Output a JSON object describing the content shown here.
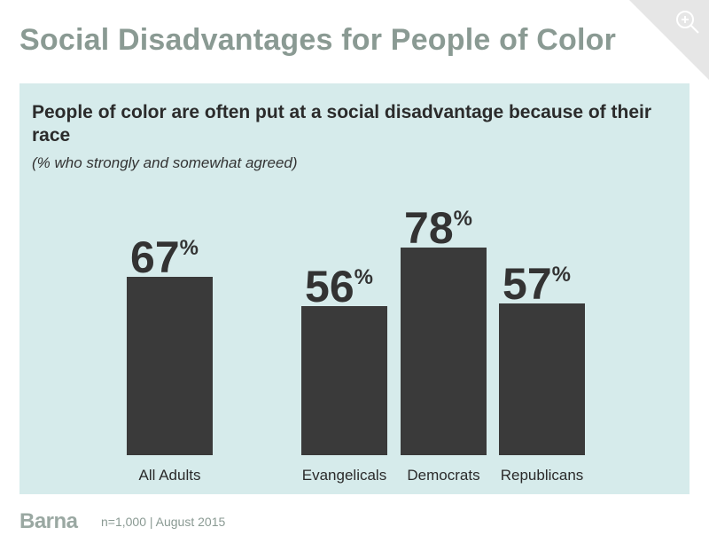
{
  "header": {
    "title": "Social Disadvantages for People of Color"
  },
  "chart_data": {
    "type": "bar",
    "title": "People of color are often put at a social disadvantage because of their race",
    "subtitle": "(% who strongly and somewhat agreed)",
    "categories": [
      "All Adults",
      "Evangelicals",
      "Democrats",
      "Republicans"
    ],
    "values": [
      67,
      56,
      78,
      57
    ],
    "value_labels": [
      "67",
      "56",
      "78",
      "57"
    ],
    "unit_suffix": "%",
    "ylim": [
      0,
      100
    ],
    "grid": false,
    "xlabel": "",
    "ylabel": ""
  },
  "footer": {
    "logo": "Barna",
    "note": "n=1,000 | August 2015"
  },
  "colors": {
    "bar": "#3a3a3a",
    "panel": "#d6ebeb",
    "title": "#8a9a93",
    "corner": "#e8e8e8"
  },
  "icons": {
    "corner": "zoom-in-icon"
  }
}
